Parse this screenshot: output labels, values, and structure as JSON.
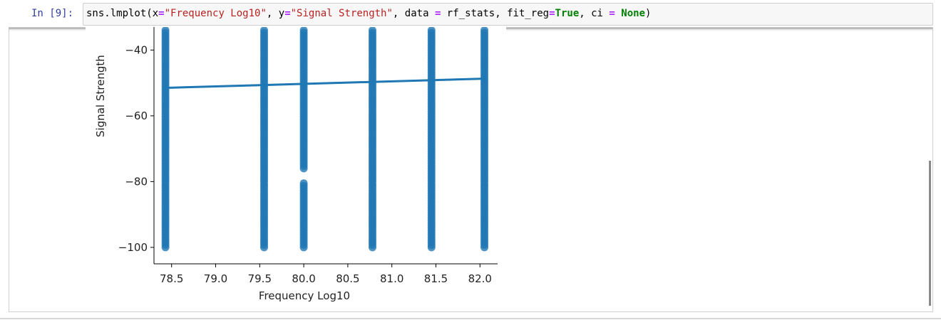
{
  "cell": {
    "prompt": "In [9]:",
    "code_tokens": [
      {
        "text": "sns.lmplot(x",
        "cls": ""
      },
      {
        "text": "=",
        "cls": "tk-op"
      },
      {
        "text": "\"Frequency Log10\"",
        "cls": "tk-str"
      },
      {
        "text": ", y",
        "cls": ""
      },
      {
        "text": "=",
        "cls": "tk-op"
      },
      {
        "text": "\"Signal Strength\"",
        "cls": "tk-str"
      },
      {
        "text": ", data ",
        "cls": ""
      },
      {
        "text": "=",
        "cls": "tk-op"
      },
      {
        "text": " rf_stats, fit_reg",
        "cls": ""
      },
      {
        "text": "=",
        "cls": "tk-op"
      },
      {
        "text": "True",
        "cls": "tk-kw"
      },
      {
        "text": ", ci ",
        "cls": ""
      },
      {
        "text": "=",
        "cls": "tk-op"
      },
      {
        "text": " ",
        "cls": ""
      },
      {
        "text": "None",
        "cls": "tk-kw"
      },
      {
        "text": ")",
        "cls": ""
      }
    ]
  },
  "colors": {
    "point": "#1f77b4",
    "line": "#1f77b4",
    "prompt": "#303f9f"
  },
  "chart_data": {
    "type": "scatter",
    "xlabel": "Frequency Log10",
    "ylabel": "Signal Strength",
    "xlim": [
      78.3,
      82.2
    ],
    "ylim": [
      -105,
      -33
    ],
    "xticks": [
      "78.5",
      "79.0",
      "79.5",
      "80.0",
      "80.5",
      "81.0",
      "81.5",
      "82.0"
    ],
    "yticks": [
      "−40",
      "−60",
      "−80",
      "−100"
    ],
    "ytick_values": [
      -40,
      -60,
      -80,
      -100
    ],
    "xtick_values": [
      78.5,
      79.0,
      79.5,
      80.0,
      80.5,
      81.0,
      81.5,
      82.0
    ],
    "x_groups": [
      78.43,
      79.55,
      80.0,
      80.78,
      81.45,
      82.05
    ],
    "y_range_per_group": [
      [
        -100,
        -34
      ],
      [
        -100,
        -34
      ],
      [
        -100,
        -34
      ],
      [
        -100,
        -34
      ],
      [
        -100,
        -34
      ],
      [
        -100,
        -34
      ]
    ],
    "gaps_per_group": [
      [],
      [],
      [
        [
          -80,
          -76
        ]
      ],
      [],
      [],
      []
    ],
    "regression_line": {
      "x": [
        78.43,
        82.05
      ],
      "y": [
        -51.5,
        -48.7
      ]
    },
    "grid": false,
    "legend": "none"
  }
}
